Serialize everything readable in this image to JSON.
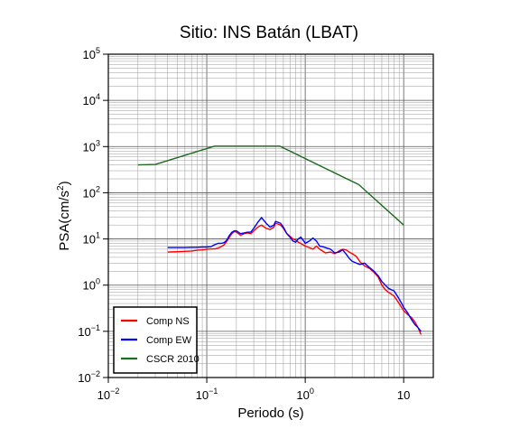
{
  "chart_data": {
    "type": "line",
    "title": "Sitio: INS Batán (LBAT)",
    "xlabel": "Periodo (s)",
    "ylabel_base": "PSA(cm/s",
    "ylabel_sup": "2",
    "ylabel_close": ")",
    "x_scale": "log",
    "y_scale": "log",
    "xlim": [
      0.01,
      20
    ],
    "ylim": [
      0.01,
      100000
    ],
    "grid": true,
    "legend_position": "bottom-left",
    "x_ticks": [
      {
        "base": "10",
        "exp": "−2",
        "value": 0.01
      },
      {
        "base": "10",
        "exp": "−1",
        "value": 0.1
      },
      {
        "base": "10",
        "exp": "0",
        "value": 1
      },
      {
        "base": "10",
        "exp": "",
        "value": 10
      }
    ],
    "y_ticks": [
      {
        "base": "10",
        "exp": "−2",
        "value": 0.01
      },
      {
        "base": "10",
        "exp": "−1",
        "value": 0.1
      },
      {
        "base": "10",
        "exp": "0",
        "value": 1
      },
      {
        "base": "10",
        "exp": "1",
        "value": 10
      },
      {
        "base": "10",
        "exp": "2",
        "value": 100
      },
      {
        "base": "10",
        "exp": "3",
        "value": 1000
      },
      {
        "base": "10",
        "exp": "4",
        "value": 10000
      },
      {
        "base": "10",
        "exp": "5",
        "value": 100000
      }
    ],
    "series": [
      {
        "name": "Comp NS",
        "color": "#ff0000",
        "x": [
          0.04,
          0.05,
          0.06,
          0.07,
          0.08,
          0.09,
          0.1,
          0.11,
          0.12,
          0.13,
          0.14,
          0.15,
          0.16,
          0.17,
          0.18,
          0.19,
          0.2,
          0.22,
          0.24,
          0.26,
          0.28,
          0.3,
          0.33,
          0.36,
          0.4,
          0.44,
          0.48,
          0.5,
          0.53,
          0.56,
          0.6,
          0.65,
          0.7,
          0.75,
          0.8,
          0.85,
          0.9,
          0.95,
          1.0,
          1.1,
          1.2,
          1.3,
          1.4,
          1.5,
          1.6,
          1.8,
          2.0,
          2.2,
          2.4,
          2.6,
          2.8,
          3.0,
          3.3,
          3.6,
          4.0,
          4.5,
          5.0,
          5.5,
          6.0,
          6.5,
          7.0,
          8.0,
          9.0,
          10.0,
          11.0,
          12.0,
          13.0,
          14.0,
          15.0
        ],
        "y": [
          5.2,
          5.3,
          5.4,
          5.5,
          5.7,
          5.8,
          6.0,
          6.1,
          6.1,
          6.3,
          6.8,
          7.5,
          9.0,
          11.0,
          13.0,
          14.5,
          14.0,
          12.0,
          13.0,
          13.5,
          13.0,
          15.0,
          18.0,
          20.0,
          17.0,
          16.0,
          18.0,
          22.0,
          21.0,
          20.0,
          17.0,
          13.0,
          11.5,
          10.0,
          9.5,
          8.5,
          8.0,
          7.5,
          7.0,
          6.5,
          6.0,
          7.0,
          6.0,
          5.5,
          5.0,
          5.2,
          4.8,
          5.5,
          6.0,
          5.8,
          5.2,
          4.8,
          4.2,
          3.2,
          2.6,
          2.3,
          1.9,
          1.5,
          1.0,
          0.8,
          0.7,
          0.58,
          0.4,
          0.28,
          0.23,
          0.2,
          0.16,
          0.12,
          0.085
        ]
      },
      {
        "name": "Comp EW",
        "color": "#0000ff",
        "x": [
          0.04,
          0.05,
          0.06,
          0.07,
          0.08,
          0.09,
          0.1,
          0.11,
          0.12,
          0.13,
          0.14,
          0.15,
          0.16,
          0.17,
          0.18,
          0.19,
          0.2,
          0.22,
          0.24,
          0.26,
          0.28,
          0.3,
          0.33,
          0.36,
          0.4,
          0.44,
          0.48,
          0.5,
          0.53,
          0.56,
          0.6,
          0.65,
          0.7,
          0.75,
          0.8,
          0.85,
          0.9,
          0.95,
          1.0,
          1.1,
          1.2,
          1.3,
          1.4,
          1.5,
          1.6,
          1.8,
          2.0,
          2.2,
          2.4,
          2.6,
          2.8,
          3.0,
          3.3,
          3.6,
          4.0,
          4.5,
          5.0,
          5.5,
          6.0,
          6.5,
          7.0,
          8.0,
          9.0,
          10.0,
          11.0,
          12.0,
          13.0,
          14.0,
          15.0
        ],
        "y": [
          6.5,
          6.5,
          6.5,
          6.6,
          6.6,
          6.7,
          6.7,
          6.8,
          7.5,
          8.0,
          8.0,
          8.3,
          9.5,
          12.0,
          14.0,
          15.0,
          15.0,
          13.0,
          13.5,
          14.0,
          14.0,
          17.0,
          23.0,
          29.0,
          22.0,
          18.0,
          20.0,
          24.0,
          23.0,
          22.0,
          18.0,
          13.0,
          11.0,
          9.0,
          8.5,
          10.0,
          11.0,
          9.5,
          8.0,
          9.0,
          10.5,
          9.0,
          7.0,
          6.8,
          6.5,
          6.0,
          5.0,
          5.2,
          5.8,
          4.7,
          3.8,
          3.3,
          3.0,
          2.8,
          3.0,
          2.4,
          2.0,
          1.6,
          1.2,
          1.0,
          0.85,
          0.75,
          0.5,
          0.33,
          0.25,
          0.18,
          0.14,
          0.12,
          0.1
        ]
      },
      {
        "name": "CSCR 2010",
        "color": "#1f6b1f",
        "x": [
          0.02,
          0.03,
          0.12,
          0.55,
          3.5,
          10.0
        ],
        "y": [
          400,
          410,
          1020,
          1020,
          150,
          20
        ]
      }
    ]
  }
}
